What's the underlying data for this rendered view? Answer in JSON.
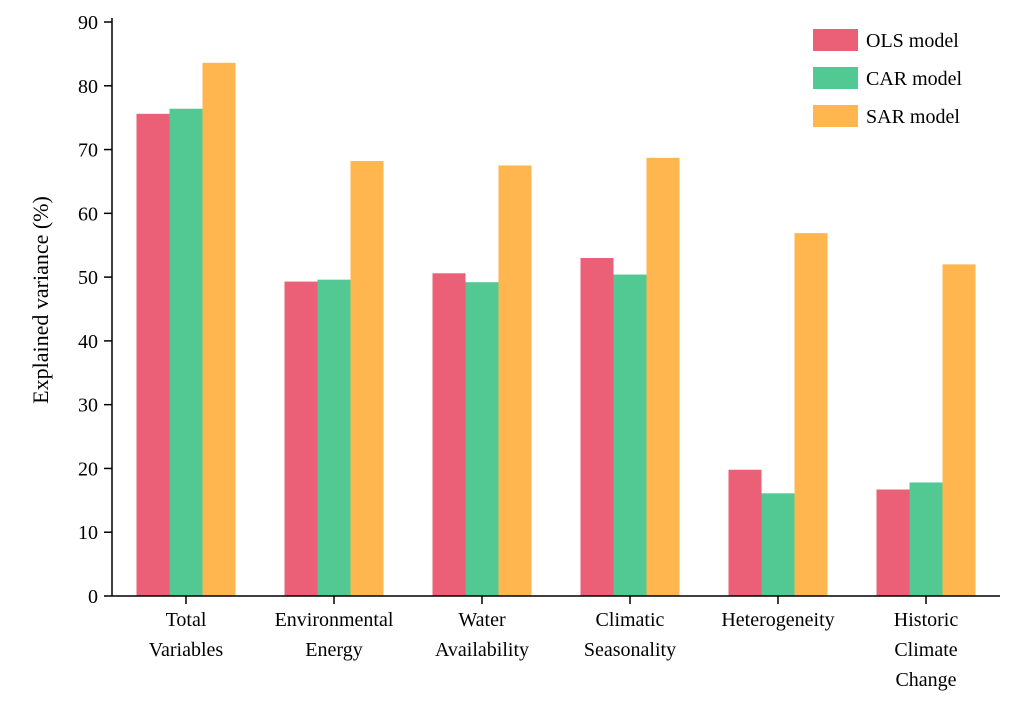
{
  "chart_data": {
    "type": "bar",
    "ylabel": "Explained variance (%)",
    "xlabel": "",
    "ylim": [
      0,
      90
    ],
    "yticks": [
      0,
      10,
      20,
      30,
      40,
      50,
      60,
      70,
      80,
      90
    ],
    "grid": false,
    "legend_position": "top-right",
    "categories": [
      [
        "Total",
        "Variables"
      ],
      [
        "Environmental",
        "Energy"
      ],
      [
        "Water",
        "Availability"
      ],
      [
        "Climatic",
        "Seasonality"
      ],
      [
        "Heterogeneity"
      ],
      [
        "Historic",
        "Climate",
        "Change"
      ]
    ],
    "series": [
      {
        "name": "OLS model",
        "color": "#eb5f77",
        "values": [
          75.6,
          49.3,
          50.6,
          53.0,
          19.8,
          16.7
        ]
      },
      {
        "name": "CAR model",
        "color": "#52c993",
        "values": [
          76.4,
          49.6,
          49.2,
          50.4,
          16.1,
          17.8
        ]
      },
      {
        "name": "SAR model",
        "color": "#ffb64f",
        "values": [
          83.6,
          68.2,
          67.5,
          68.7,
          56.9,
          52.0
        ]
      }
    ]
  }
}
